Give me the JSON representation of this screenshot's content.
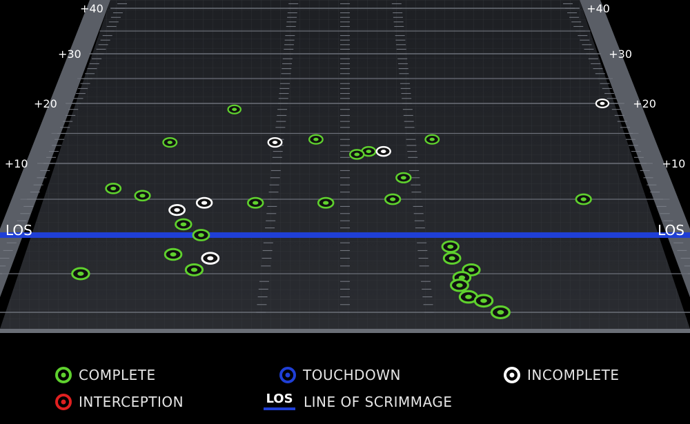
{
  "chart_data": {
    "type": "scatter",
    "title": "",
    "xlabel": "",
    "ylabel": "",
    "yardline_labels_left": [
      "+40",
      "+30",
      "+20",
      "+10",
      "LOS"
    ],
    "yardline_labels_right": [
      "+40",
      "+30",
      "+20",
      "+10",
      "LOS"
    ],
    "ylim": [
      -10,
      42
    ],
    "xlim": [
      -1,
      1
    ],
    "colors": {
      "complete": "#5fd12e",
      "incomplete": "#ffffff",
      "touchdown": "#1f3fd6",
      "interception": "#e02020",
      "los": "#1f3fd6"
    },
    "series": [
      {
        "name": "COMPLETE",
        "points": [
          {
            "x": -0.4,
            "y": 19
          },
          {
            "x": -0.1,
            "y": 14
          },
          {
            "x": 0.08,
            "y": 12
          },
          {
            "x": 0.3,
            "y": 14
          },
          {
            "x": 0.75,
            "y": 5
          },
          {
            "x": -0.64,
            "y": 5.5
          },
          {
            "x": -0.6,
            "y": 13.5
          },
          {
            "x": 0.04,
            "y": 11.5
          },
          {
            "x": 0.19,
            "y": 8
          },
          {
            "x": 0.15,
            "y": 5
          },
          {
            "x": -0.74,
            "y": 6.5
          },
          {
            "x": -0.28,
            "y": 4.5
          },
          {
            "x": -0.06,
            "y": 4.5
          },
          {
            "x": -0.49,
            "y": 1.5
          },
          {
            "x": -0.43,
            "y": 0
          },
          {
            "x": -0.5,
            "y": -2.5
          },
          {
            "x": -0.43,
            "y": -4.5
          },
          {
            "x": -0.75,
            "y": -5
          },
          {
            "x": 0.31,
            "y": -1.5
          },
          {
            "x": 0.31,
            "y": -3
          },
          {
            "x": 0.36,
            "y": -4.5
          },
          {
            "x": 0.33,
            "y": -5.5
          },
          {
            "x": 0.32,
            "y": -6.5
          },
          {
            "x": 0.34,
            "y": -8
          },
          {
            "x": 0.38,
            "y": -8.5
          },
          {
            "x": 0.42,
            "y": -10
          }
        ]
      },
      {
        "name": "INCOMPLETE",
        "points": [
          {
            "x": -0.24,
            "y": 13.5
          },
          {
            "x": 0.13,
            "y": 12
          },
          {
            "x": 0.94,
            "y": 20
          },
          {
            "x": -0.52,
            "y": 3.5
          },
          {
            "x": -0.44,
            "y": 4.5
          },
          {
            "x": -0.39,
            "y": -3
          }
        ]
      },
      {
        "name": "TOUCHDOWN",
        "points": []
      },
      {
        "name": "INTERCEPTION",
        "points": []
      }
    ]
  },
  "legend": {
    "complete": "COMPLETE",
    "touchdown": "TOUCHDOWN",
    "incomplete": "INCOMPLETE",
    "interception": "INTERCEPTION",
    "los_key": "LOS",
    "los_desc": "LINE OF SCRIMMAGE"
  }
}
